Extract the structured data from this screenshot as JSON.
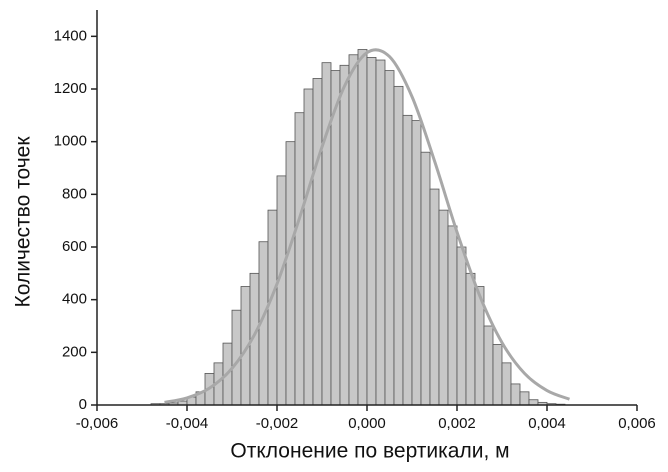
{
  "chart_data": {
    "type": "histogram",
    "xlabel": "Отклонение по вертикали, м",
    "ylabel": "Количество точек",
    "bins": [
      -0.0048,
      -0.0046,
      -0.0044,
      -0.0042,
      -0.004,
      -0.0038,
      -0.0036,
      -0.0034,
      -0.0032,
      -0.003,
      -0.0028,
      -0.0026,
      -0.0024,
      -0.0022,
      -0.002,
      -0.0018,
      -0.0016,
      -0.0014,
      -0.0012,
      -0.001,
      -0.0008,
      -0.0006,
      -0.0004,
      -0.0002,
      0,
      0.0002,
      0.0004,
      0.0006,
      0.0008,
      0.001,
      0.0012,
      0.0014,
      0.0016,
      0.0018,
      0.002,
      0.0022,
      0.0024,
      0.0026,
      0.0028,
      0.003,
      0.0032,
      0.0034,
      0.0036,
      0.0038,
      0.004,
      0.0042,
      0.0044
    ],
    "counts": [
      5,
      5,
      8,
      15,
      30,
      50,
      120,
      160,
      235,
      360,
      450,
      500,
      620,
      740,
      870,
      1000,
      1110,
      1200,
      1240,
      1300,
      1270,
      1290,
      1330,
      1350,
      1320,
      1310,
      1270,
      1210,
      1100,
      1080,
      960,
      820,
      740,
      680,
      600,
      500,
      450,
      300,
      230,
      160,
      80,
      50,
      20,
      10,
      5,
      3
    ],
    "color": "#c8c8c8",
    "edgecolor": "#555555",
    "fit": {
      "x": [
        -0.0045,
        -0.004,
        -0.0035,
        -0.003,
        -0.0025,
        -0.002,
        -0.0015,
        -0.001,
        -0.0005,
        0,
        0.0005,
        0.001,
        0.0015,
        0.002,
        0.0025,
        0.003,
        0.0035,
        0.004,
        0.0045
      ],
      "values": [
        10,
        27,
        64,
        139,
        267,
        460,
        710,
        980,
        1211,
        1338,
        1323,
        1171,
        927,
        657,
        417,
        237,
        120,
        55,
        22
      ],
      "color": "#a8a8a8"
    },
    "xlim": [
      -0.006,
      0.006
    ],
    "xticks": [
      {
        "value": -0.006,
        "label": "-0,006"
      },
      {
        "value": -0.004,
        "label": "-0,004"
      },
      {
        "value": -0.002,
        "label": "-0,002"
      },
      {
        "value": 0,
        "label": "0,000"
      },
      {
        "value": 0.002,
        "label": "0,002"
      },
      {
        "value": 0.004,
        "label": "0,004"
      },
      {
        "value": 0.006,
        "label": "0,006"
      }
    ],
    "ylim": [
      0,
      1500
    ],
    "yticks": [
      0,
      200,
      400,
      600,
      800,
      1000,
      1200,
      1400
    ]
  }
}
